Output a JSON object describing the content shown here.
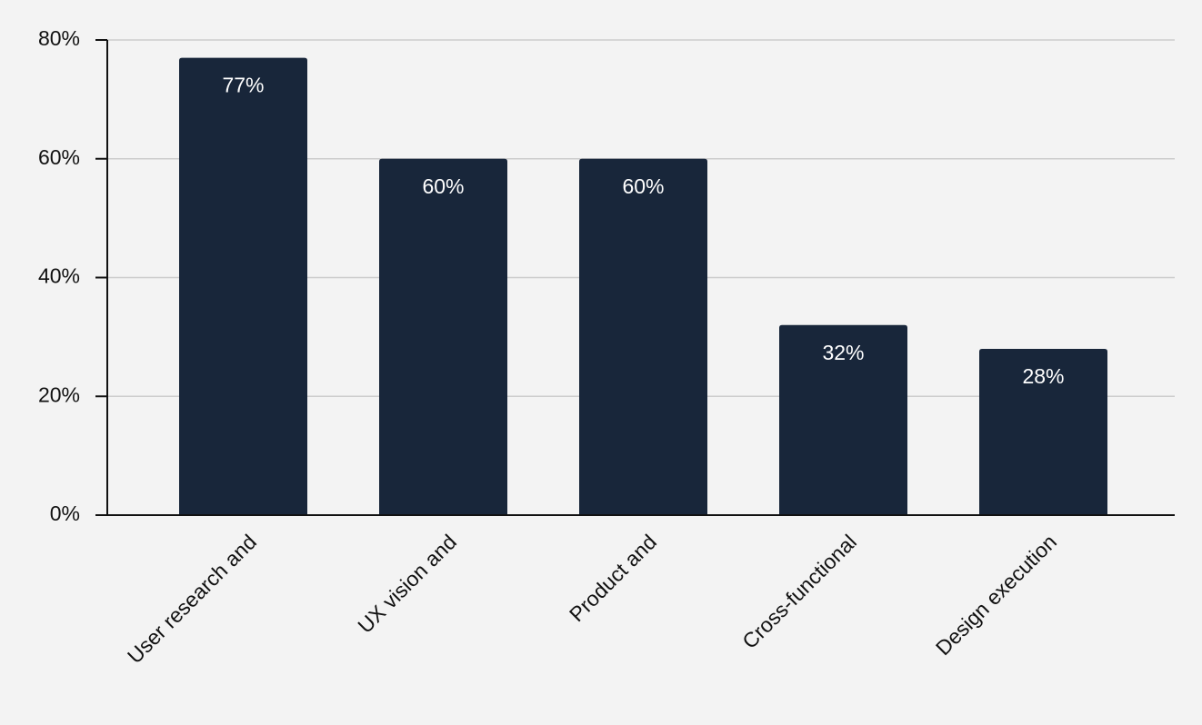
{
  "chart_data": {
    "type": "bar",
    "title": "",
    "xlabel": "",
    "ylabel": "",
    "categories": [
      "User research and",
      "UX vision and",
      "Product and",
      "Cross-functional",
      "Design execution"
    ],
    "values": [
      77,
      60,
      60,
      32,
      28
    ],
    "data_labels": [
      "77%",
      "60%",
      "60%",
      "32%",
      "28%"
    ],
    "ylim": [
      0,
      80
    ],
    "yticks": [
      0,
      20,
      40,
      60,
      80
    ],
    "ytick_labels": [
      "0%",
      "20%",
      "40%",
      "60%",
      "80%"
    ],
    "grid": true,
    "legend": "none",
    "colors": {
      "bar": "#18263a",
      "grid": "#cccccc",
      "axis": "#111111",
      "background": "#f3f3f3",
      "data_label": "#ffffff"
    }
  }
}
